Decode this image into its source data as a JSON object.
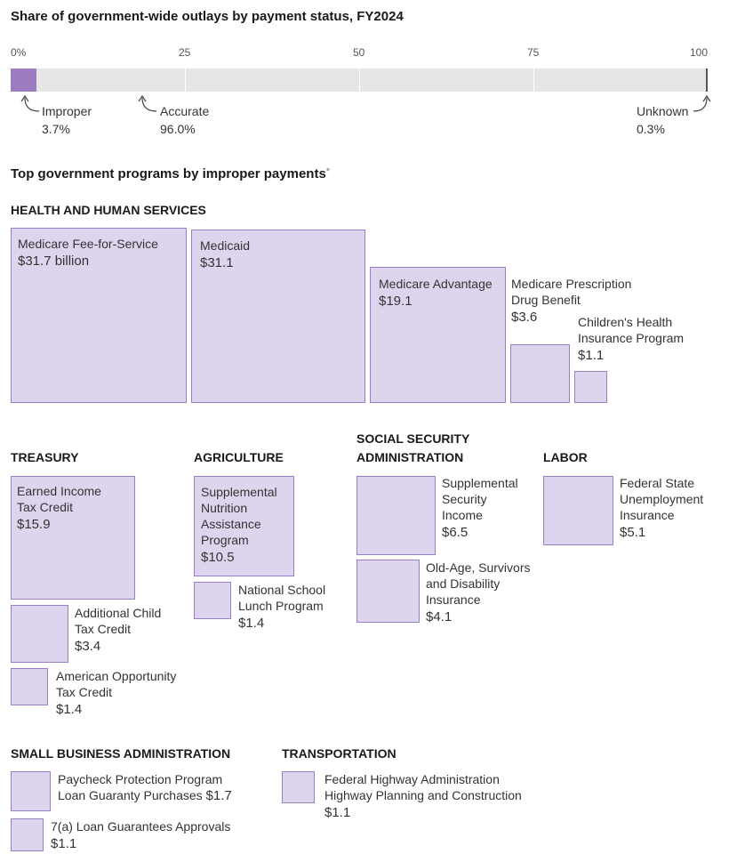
{
  "title": "Share of government-wide outlays by payment status, FY2024",
  "subtitle": "Top government programs by improper payments",
  "subtitle_marker": "*",
  "colors": {
    "box_fill": "#ddd5ee",
    "box_border": "#9a7ec5",
    "bar_improper": "#9c7bc0",
    "bar_track": "#e6e6e6",
    "unknown_marker": "#555555"
  },
  "chart_data": [
    {
      "type": "bar",
      "orientation": "horizontal-stacked",
      "title": "Share of government-wide outlays by payment status, FY2024",
      "xlim": [
        0,
        100
      ],
      "ticks": [
        "0%",
        "25",
        "50",
        "75",
        "100"
      ],
      "series": [
        {
          "name": "Improper",
          "value": 3.7,
          "label": "3.7%"
        },
        {
          "name": "Accurate",
          "value": 96.0,
          "label": "96.0%"
        },
        {
          "name": "Unknown",
          "value": 0.3,
          "label": "0.3%"
        }
      ]
    },
    {
      "type": "treemap",
      "title": "Top government programs by improper payments",
      "unit": "billion USD",
      "groups": [
        {
          "name": "HEALTH AND HUMAN SERVICES",
          "programs": [
            {
              "name": "Medicare Fee-for-Service",
              "value": 31.7,
              "label": "$31.7 billion"
            },
            {
              "name": "Medicaid",
              "value": 31.1,
              "label": "$31.1"
            },
            {
              "name": "Medicare Advantage",
              "value": 19.1,
              "label": "$19.1"
            },
            {
              "name": "Medicare Prescription Drug Benefit",
              "value": 3.6,
              "label": "$3.6"
            },
            {
              "name": "Children's Health Insurance Program",
              "value": 1.1,
              "label": "$1.1"
            }
          ]
        },
        {
          "name": "TREASURY",
          "programs": [
            {
              "name": "Earned Income Tax Credit",
              "value": 15.9,
              "label": "$15.9"
            },
            {
              "name": "Additional Child Tax Credit",
              "value": 3.4,
              "label": "$3.4"
            },
            {
              "name": "American Opportunity Tax Credit",
              "value": 1.4,
              "label": "$1.4"
            }
          ]
        },
        {
          "name": "AGRICULTURE",
          "programs": [
            {
              "name": "Supplemental Nutrition Assistance Program",
              "value": 10.5,
              "label": "$10.5"
            },
            {
              "name": "National School Lunch Program",
              "value": 1.4,
              "label": "$1.4"
            }
          ]
        },
        {
          "name": "SOCIAL SECURITY ADMINISTRATION",
          "programs": [
            {
              "name": "Supplemental Security Income",
              "value": 6.5,
              "label": "$6.5"
            },
            {
              "name": "Old-Age, Survivors and Disability Insurance",
              "value": 4.1,
              "label": "$4.1"
            }
          ]
        },
        {
          "name": "LABOR",
          "programs": [
            {
              "name": "Federal State Unemployment Insurance",
              "value": 5.1,
              "label": "$5.1"
            }
          ]
        },
        {
          "name": "SMALL BUSINESS ADMINISTRATION",
          "programs": [
            {
              "name": "Paycheck Protection Program Loan Guaranty Purchases",
              "value": 1.7,
              "label": "$1.7"
            },
            {
              "name": "7(a) Loan Guarantees Approvals",
              "value": 1.1,
              "label": "$1.1"
            }
          ]
        },
        {
          "name": "TRANSPORTATION",
          "programs": [
            {
              "name": "Federal Highway Administration Highway Planning and Construction",
              "value": 1.1,
              "label": "$1.1"
            }
          ]
        }
      ]
    }
  ],
  "labels": {
    "hhs_line1": "HEALTH AND HUMAN SERVICES",
    "mffs": "Medicare Fee-for-Service",
    "medicaid": "Medicaid",
    "ma": "Medicare Advantage",
    "mpdb_l1": "Medicare Prescription",
    "mpdb_l2": "Drug Benefit",
    "chip_l1": "Children's Health",
    "chip_l2": "Insurance Program",
    "treasury": "TREASURY",
    "eitc_l1": "Earned Income",
    "eitc_l2": "Tax Credit",
    "actc_l1": "Additional Child",
    "actc_l2": "Tax Credit",
    "aotc_l1": "American Opportunity",
    "aotc_l2": "Tax Credit",
    "agriculture": "AGRICULTURE",
    "snap_l1": "Supplemental",
    "snap_l2": "Nutrition",
    "snap_l3": "Assistance",
    "snap_l4": "Program",
    "nslp_l1": "National School",
    "nslp_l2": "Lunch Program",
    "ssa_l1": "SOCIAL SECURITY",
    "ssa_l2": "ADMINISTRATION",
    "ssi_l1": "Supplemental",
    "ssi_l2": "Security",
    "ssi_l3": "Income",
    "oasdi_l1": "Old-Age, Survivors",
    "oasdi_l2": "and Disability",
    "oasdi_l3": "Insurance",
    "labor": "LABOR",
    "ui_l1": "Federal State",
    "ui_l2": "Unemployment",
    "ui_l3": "Insurance",
    "sba": "SMALL BUSINESS ADMINISTRATION",
    "ppp_l1": "Paycheck Protection Program",
    "ppp_l2": "Loan Guaranty Purchases",
    "sba7a": "7(a) Loan Guarantees Approvals",
    "transportation": "TRANSPORTATION",
    "fhwa_l1": "Federal Highway Administration",
    "fhwa_l2": "Highway Planning and Construction"
  }
}
